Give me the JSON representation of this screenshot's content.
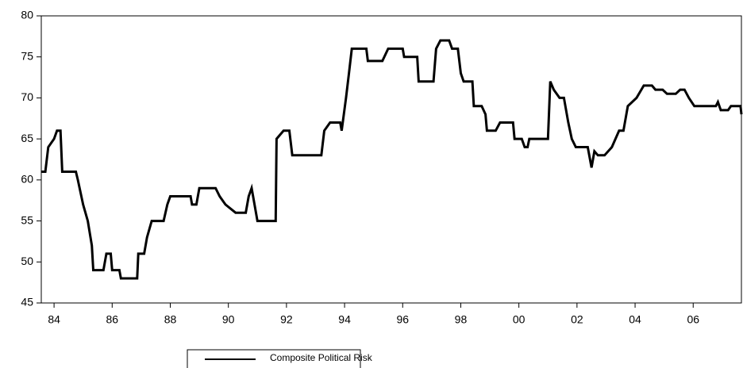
{
  "chart_data": {
    "type": "line",
    "legend": "bottom",
    "grid": false,
    "x": [
      1983.56,
      1983.7,
      1983.8,
      1984.0,
      1984.1,
      1984.22,
      1984.28,
      1984.75,
      1984.82,
      1985.0,
      1985.16,
      1985.3,
      1985.35,
      1985.7,
      1985.8,
      1985.95,
      1986.0,
      1986.25,
      1986.3,
      1986.86,
      1986.9,
      1987.1,
      1987.2,
      1987.36,
      1987.77,
      1987.9,
      1988.0,
      1988.7,
      1988.75,
      1988.9,
      1989.0,
      1989.56,
      1989.7,
      1989.9,
      1990.25,
      1990.6,
      1990.7,
      1990.8,
      1991.0,
      1991.63,
      1991.66,
      1991.9,
      1992.1,
      1992.2,
      1993.2,
      1993.3,
      1993.5,
      1993.85,
      1993.9,
      1994.05,
      1994.15,
      1994.25,
      1994.75,
      1994.8,
      1995.3,
      1995.5,
      1996.0,
      1996.05,
      1996.5,
      1996.55,
      1997.06,
      1997.15,
      1997.3,
      1997.6,
      1997.7,
      1997.9,
      1998.0,
      1998.1,
      1998.2,
      1998.4,
      1998.45,
      1998.72,
      1998.85,
      1998.9,
      1999.2,
      1999.35,
      1999.8,
      1999.85,
      2000.1,
      2000.2,
      2000.3,
      2000.36,
      2001.0,
      2001.08,
      2001.2,
      2001.4,
      2001.55,
      2001.7,
      2001.82,
      2001.96,
      2002.37,
      2002.5,
      2002.6,
      2002.72,
      2002.95,
      2003.2,
      2003.45,
      2003.6,
      2003.75,
      2004.05,
      2004.3,
      2004.58,
      2004.7,
      2004.95,
      2005.1,
      2005.4,
      2005.55,
      2005.7,
      2005.85,
      2006.04,
      2006.78,
      2006.85,
      2006.95,
      2007.2,
      2007.3,
      2007.63,
      2007.66
    ],
    "series": [
      {
        "name": "Composite Political Risk",
        "color": "#000000",
        "values": [
          61,
          61,
          64,
          65,
          66,
          66,
          61,
          61,
          60,
          57,
          55,
          52,
          49,
          49,
          51,
          51,
          49,
          49,
          48,
          48,
          51,
          51,
          53,
          55,
          55,
          57,
          58,
          58,
          57,
          57,
          59,
          59,
          58,
          57,
          56,
          56,
          58,
          59,
          55,
          55,
          65,
          66,
          66,
          63,
          63,
          66,
          67,
          67,
          66,
          70,
          73,
          76,
          76,
          74.5,
          74.5,
          76,
          76,
          75,
          75,
          72,
          72,
          76,
          77,
          77,
          76,
          76,
          73,
          72,
          72,
          72,
          69,
          69,
          68,
          66,
          66,
          67,
          67,
          65,
          65,
          64,
          64,
          65,
          65,
          72,
          71,
          70,
          70,
          67,
          65,
          64,
          64,
          61.5,
          63.5,
          63,
          63,
          64,
          66,
          66,
          69,
          70,
          71.5,
          71.5,
          71,
          71,
          70.5,
          70.5,
          71,
          71,
          70,
          69,
          69,
          69.5,
          68.5,
          68.5,
          69,
          69,
          68
        ]
      }
    ],
    "xlim": [
      1983.56,
      2007.66
    ],
    "xticks": [
      {
        "value": 1984,
        "label": "84"
      },
      {
        "value": 1986,
        "label": "86"
      },
      {
        "value": 1988,
        "label": "88"
      },
      {
        "value": 1990,
        "label": "90"
      },
      {
        "value": 1992,
        "label": "92"
      },
      {
        "value": 1994,
        "label": "94"
      },
      {
        "value": 1996,
        "label": "96"
      },
      {
        "value": 1998,
        "label": "98"
      },
      {
        "value": 2000,
        "label": "00"
      },
      {
        "value": 2002,
        "label": "02"
      },
      {
        "value": 2004,
        "label": "04"
      },
      {
        "value": 2006,
        "label": "06"
      }
    ],
    "ylim": [
      45,
      80
    ],
    "yticks": [
      45,
      50,
      55,
      60,
      65,
      70,
      75,
      80
    ]
  }
}
